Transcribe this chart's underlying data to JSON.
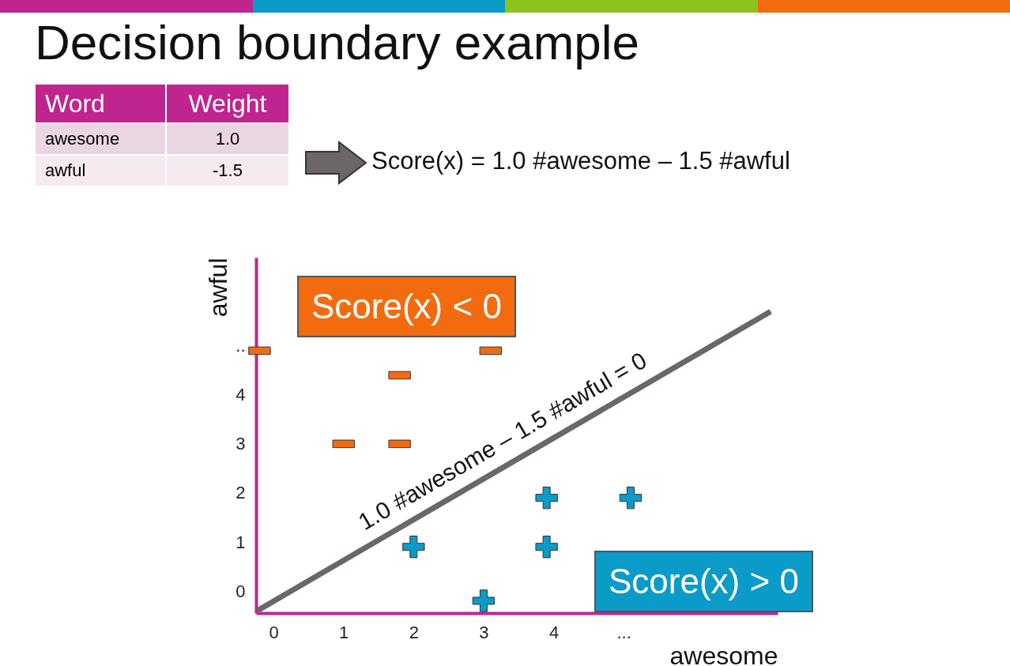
{
  "chart_data": {
    "type": "scatter",
    "title": "Decision boundary example",
    "xlabel": "awesome",
    "ylabel": "awful",
    "xlim": [
      -0.25,
      7.2
    ],
    "ylim": [
      -0.45,
      6.8
    ],
    "xticks": [
      0,
      1,
      2,
      3,
      4,
      {
        "value": 5,
        "label": "..."
      }
    ],
    "yticks": [
      0,
      1,
      2,
      3,
      4,
      {
        "value": 5,
        "label": ".."
      }
    ],
    "annotations": [
      "Word",
      "Weight",
      "awesome",
      "1.0",
      "awful",
      "-1.5",
      "Score(x) = 1.0 #awesome – 1.5 #awful",
      "Score(x) < 0",
      "Score(x) > 0"
    ],
    "series": [
      {
        "color": "#f26b0f",
        "marker": "square",
        "x": [
          -0.2,
          1,
          1.8,
          1.8,
          3.1
        ],
        "values": [
          4.9,
          3,
          3,
          4.4,
          4.9
        ]
      },
      {
        "color": "#0b9bc8",
        "marker": "cross",
        "x": [
          2,
          3,
          3.9,
          3.9,
          5.1
        ],
        "values": [
          0.9,
          -0.2,
          0.9,
          1.9,
          1.9
        ]
      },
      {
        "type": "line",
        "name": "1.0 #awesome – 1.5 #awful = 0",
        "color": "#6d6666",
        "x": [
          -0.23,
          7.1
        ],
        "values": [
          -0.4,
          5.7
        ]
      }
    ]
  }
}
